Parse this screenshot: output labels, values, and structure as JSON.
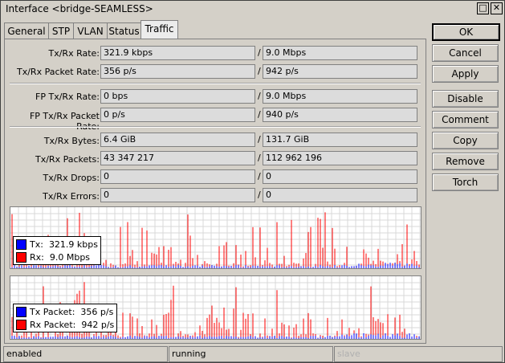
{
  "window": {
    "title": "Interface <bridge-SEAMLESS>",
    "restore_glyph": "□",
    "close_glyph": "✕"
  },
  "tabs": [
    "General",
    "STP",
    "VLAN",
    "Status",
    "Traffic"
  ],
  "active_tab": "Traffic",
  "fields": {
    "txrx_rate": {
      "label": "Tx/Rx Rate:",
      "tx": "321.9 kbps",
      "rx": "9.0 Mbps"
    },
    "txrx_packet_rate": {
      "label": "Tx/Rx Packet Rate:",
      "tx": "356 p/s",
      "rx": "942 p/s"
    },
    "fp_txrx_rate": {
      "label": "FP Tx/Rx Rate:",
      "tx": "0 bps",
      "rx": "9.0 Mbps"
    },
    "fp_txrx_packet_rate": {
      "label": "FP Tx/Rx Packet Rate:",
      "tx": "0 p/s",
      "rx": "940 p/s"
    },
    "txrx_bytes": {
      "label": "Tx/Rx Bytes:",
      "tx": "6.4 GiB",
      "rx": "131.7 GiB"
    },
    "txrx_packets": {
      "label": "Tx/Rx Packets:",
      "tx": "43 347 217",
      "rx": "112 962 196"
    },
    "txrx_drops": {
      "label": "Tx/Rx Drops:",
      "tx": "0",
      "rx": "0"
    },
    "txrx_errors": {
      "label": "Tx/Rx Errors:",
      "tx": "0",
      "rx": "0"
    }
  },
  "separator": "/",
  "graph_rate": {
    "legend_tx_label": "Tx:",
    "legend_tx_value": "321.9 kbps",
    "legend_rx_label": "Rx:",
    "legend_rx_value": "9.0 Mbps",
    "tx_color": "#0000ff",
    "rx_color": "#ff0000"
  },
  "graph_packets": {
    "legend_tx_label": "Tx Packet:",
    "legend_tx_value": "356 p/s",
    "legend_rx_label": "Rx Packet:",
    "legend_rx_value": "942 p/s",
    "tx_color": "#0000ff",
    "rx_color": "#ff0000"
  },
  "buttons": [
    "OK",
    "Cancel",
    "Apply",
    "Disable",
    "Comment",
    "Copy",
    "Remove",
    "Torch"
  ],
  "status_bar": {
    "state": "enabled",
    "running": "running",
    "slave": "slave"
  }
}
